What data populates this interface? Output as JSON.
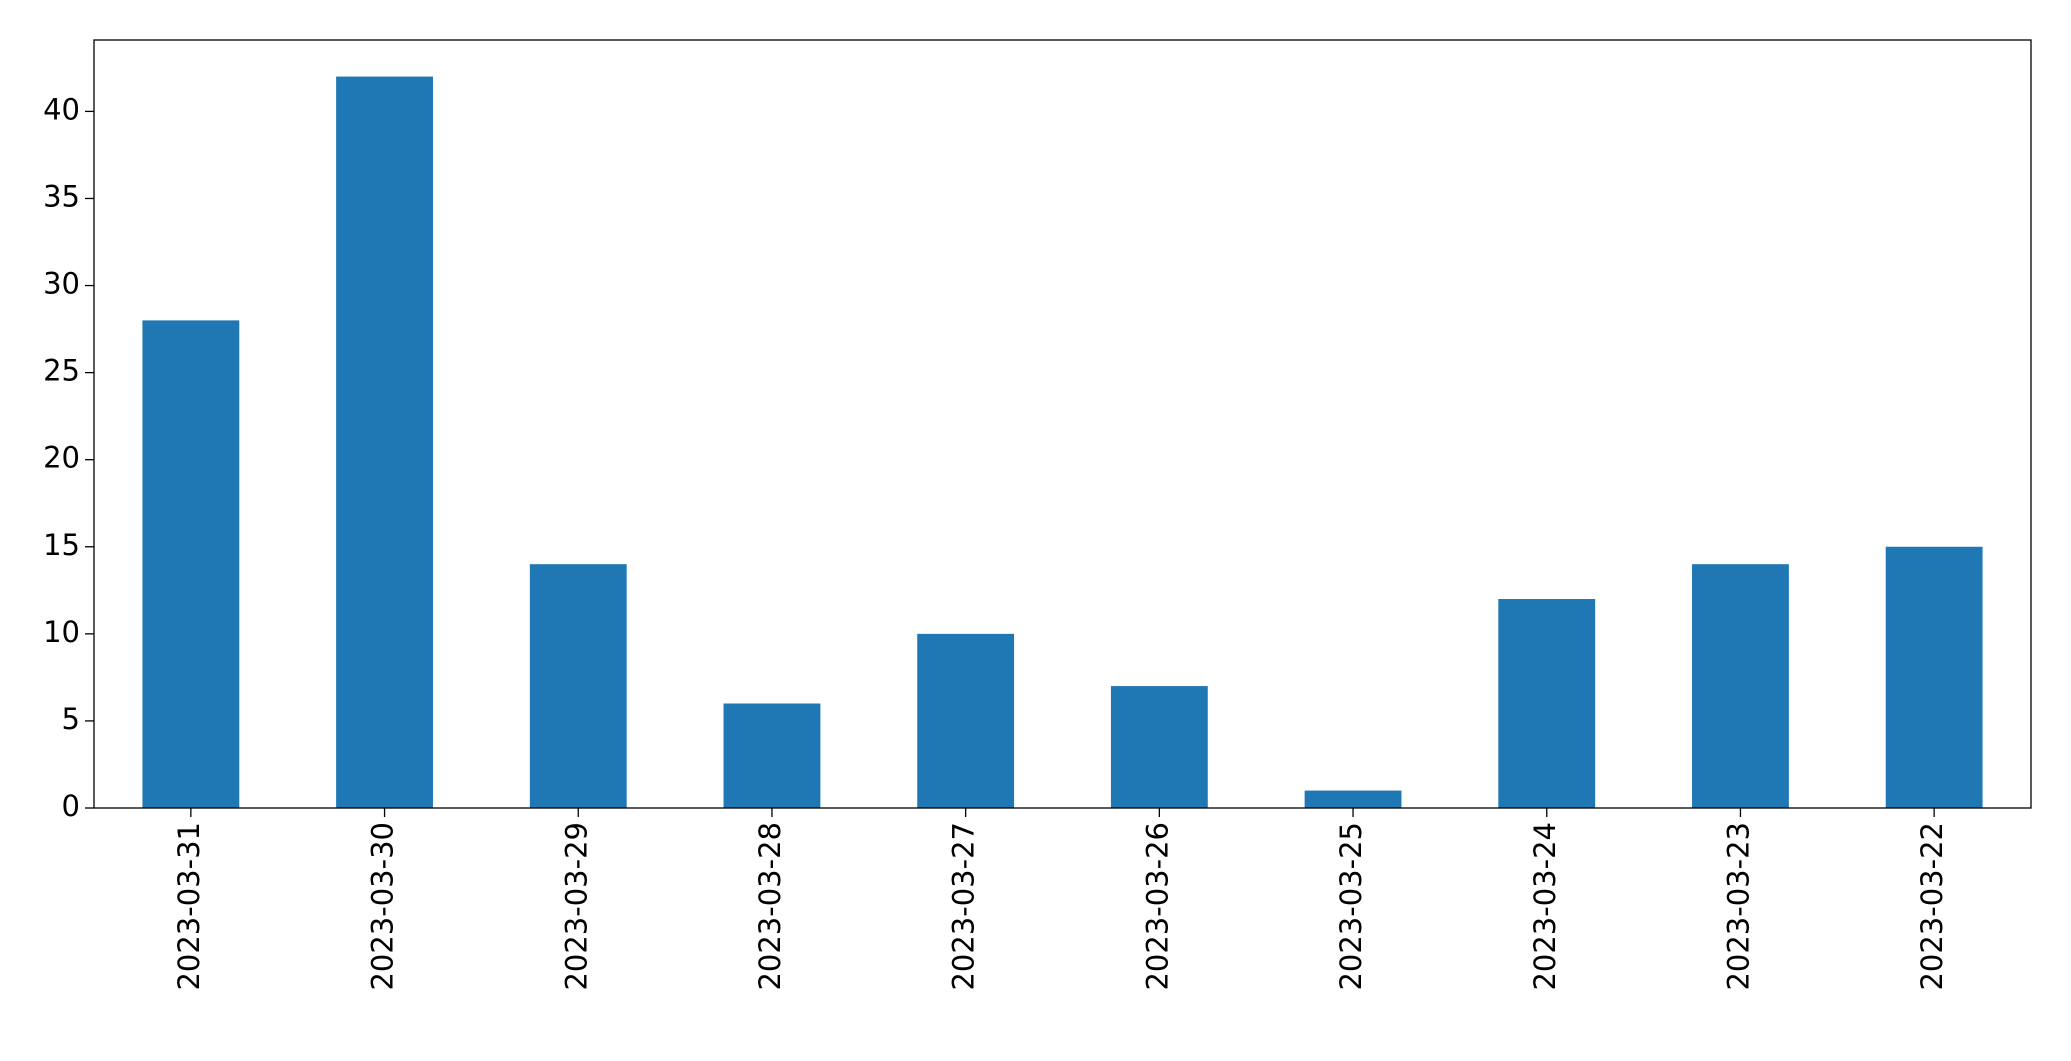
{
  "chart_data": {
    "type": "bar",
    "categories": [
      "2023-03-31",
      "2023-03-30",
      "2023-03-29",
      "2023-03-28",
      "2023-03-27",
      "2023-03-26",
      "2023-03-25",
      "2023-03-24",
      "2023-03-23",
      "2023-03-22"
    ],
    "values": [
      28,
      42,
      14,
      6,
      10,
      7,
      1,
      12,
      14,
      15
    ],
    "color": "#1f77b4",
    "ylim": [
      0,
      44.1
    ],
    "yticks": [
      0,
      5,
      10,
      15,
      20,
      25,
      30,
      35,
      40
    ],
    "grid": false
  }
}
